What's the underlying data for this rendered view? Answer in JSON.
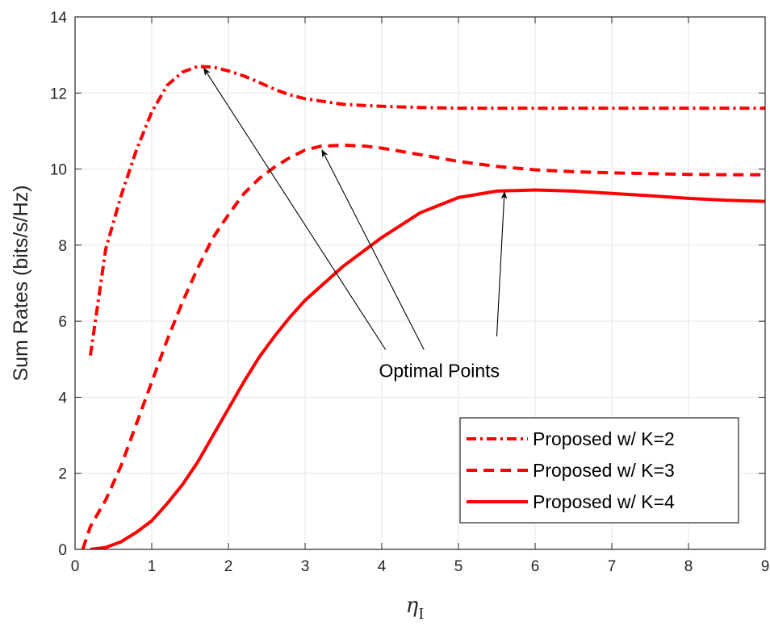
{
  "chart_data": {
    "type": "line",
    "title": "",
    "xlabel": "η",
    "xlabel_sub": "I",
    "ylabel": "Sum Rates (bits/s/Hz)",
    "xlim": [
      0,
      9
    ],
    "ylim": [
      0,
      14
    ],
    "xticks": [
      0,
      1,
      2,
      3,
      4,
      5,
      6,
      7,
      8,
      9
    ],
    "yticks": [
      0,
      2,
      4,
      6,
      8,
      10,
      12,
      14
    ],
    "grid": true,
    "legend_position": "bottom-right",
    "line_color": "#ff0000",
    "series": [
      {
        "name": "Proposed w/ K=2",
        "style": "dash-dot",
        "x": [
          0.2,
          0.4,
          0.6,
          0.8,
          1.0,
          1.2,
          1.4,
          1.6,
          1.8,
          2.0,
          2.2,
          2.4,
          2.6,
          2.8,
          3.0,
          3.5,
          4.0,
          4.5,
          5.0,
          5.5,
          6.0,
          6.5,
          7.0,
          7.5,
          8.0,
          8.5,
          9.0
        ],
        "y": [
          5.1,
          7.9,
          9.3,
          10.5,
          11.5,
          12.2,
          12.55,
          12.7,
          12.68,
          12.58,
          12.45,
          12.28,
          12.1,
          11.95,
          11.85,
          11.7,
          11.65,
          11.62,
          11.6,
          11.6,
          11.6,
          11.6,
          11.6,
          11.6,
          11.6,
          11.6,
          11.6
        ]
      },
      {
        "name": "Proposed w/ K=3",
        "style": "dashed",
        "x": [
          0.1,
          0.2,
          0.4,
          0.6,
          0.8,
          1.0,
          1.2,
          1.4,
          1.6,
          1.8,
          2.0,
          2.2,
          2.4,
          2.6,
          2.8,
          3.0,
          3.2,
          3.5,
          3.8,
          4.0,
          4.5,
          5.0,
          5.5,
          6.0,
          6.5,
          7.0,
          7.5,
          8.0,
          8.5,
          9.0
        ],
        "y": [
          0.0,
          0.6,
          1.3,
          2.2,
          3.3,
          4.4,
          5.5,
          6.5,
          7.4,
          8.2,
          8.8,
          9.35,
          9.75,
          10.05,
          10.3,
          10.5,
          10.6,
          10.63,
          10.6,
          10.55,
          10.38,
          10.2,
          10.07,
          9.98,
          9.93,
          9.9,
          9.88,
          9.86,
          9.85,
          9.85
        ]
      },
      {
        "name": "Proposed w/ K=4",
        "style": "solid",
        "x": [
          0.2,
          0.4,
          0.6,
          0.8,
          1.0,
          1.2,
          1.4,
          1.6,
          1.8,
          2.0,
          2.2,
          2.4,
          2.6,
          2.8,
          3.0,
          3.5,
          4.0,
          4.5,
          5.0,
          5.5,
          6.0,
          6.5,
          7.0,
          7.5,
          8.0,
          8.5,
          9.0
        ],
        "y": [
          0.0,
          0.05,
          0.2,
          0.45,
          0.75,
          1.2,
          1.7,
          2.3,
          3.0,
          3.7,
          4.4,
          5.05,
          5.6,
          6.1,
          6.55,
          7.45,
          8.2,
          8.85,
          9.25,
          9.42,
          9.45,
          9.42,
          9.36,
          9.3,
          9.23,
          9.18,
          9.15
        ]
      }
    ],
    "annotations": [
      {
        "text": "Optimal Points",
        "anchor": [
          4.75,
          4.7
        ],
        "arrows": [
          {
            "from": [
              4.05,
              5.25
            ],
            "to": [
              1.68,
              12.65
            ]
          },
          {
            "from": [
              4.55,
              5.25
            ],
            "to": [
              3.22,
              10.5
            ]
          },
          {
            "from": [
              5.5,
              5.6
            ],
            "to": [
              5.6,
              9.4
            ]
          }
        ]
      }
    ]
  }
}
